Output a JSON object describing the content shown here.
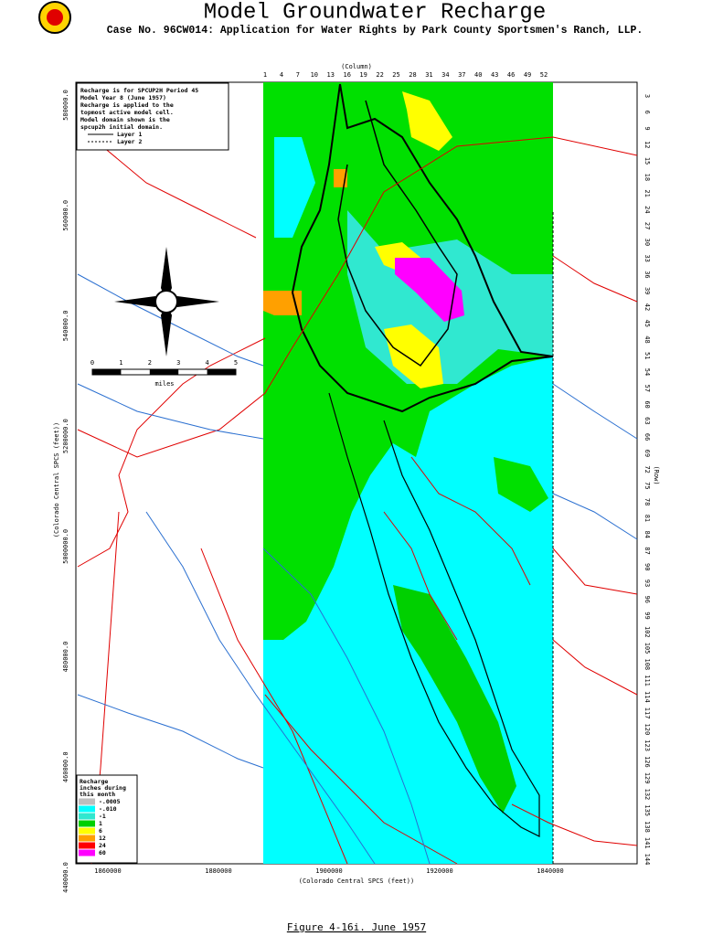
{
  "header": {
    "title": "Model Groundwater Recharge",
    "subtitle": "Case No. 96CW014: Application for Water Rights by Park County Sportsmen's Ranch, LLP."
  },
  "notes": [
    "Recharge is for SPCUP2H Period 45",
    "Model Year  8 (June 1957)",
    "Recharge is applied to the",
    "topmost active model cell.",
    "Model domain shown is the",
    "spcup2h initial domain."
  ],
  "layers": [
    "Layer 1",
    "Layer 2"
  ],
  "grid": {
    "column_title": "(Column)",
    "columns": [
      1,
      4,
      7,
      10,
      13,
      16,
      19,
      22,
      25,
      28,
      31,
      34,
      37,
      40,
      43,
      46,
      49,
      52
    ],
    "row_title": "(Row)",
    "rows": [
      3,
      6,
      9,
      12,
      15,
      18,
      21,
      24,
      27,
      30,
      33,
      36,
      39,
      42,
      45,
      48,
      51,
      54,
      57,
      60,
      63,
      66,
      69,
      72,
      75,
      78,
      81,
      84,
      87,
      90,
      93,
      96,
      99,
      102,
      105,
      108,
      111,
      114,
      117,
      120,
      123,
      126,
      129,
      132,
      135,
      138,
      141,
      144
    ]
  },
  "axes": {
    "x_title": "(Colorado Central SPCS (feet))",
    "x_labels": [
      "1860000",
      "1880000",
      "1900000",
      "1920000",
      "1840000"
    ],
    "y_title": "(Colorado Central SPCS (feet))",
    "y_labels": [
      "580000.0",
      "560000.0",
      "540000.0",
      "5200000.0",
      "5000000.0",
      "480000.0",
      "460000.0",
      "440000.0"
    ]
  },
  "scale_bar": {
    "labels": [
      "0",
      "1",
      "2",
      "3",
      "4",
      "5"
    ],
    "unit": "miles"
  },
  "legend": {
    "title": [
      "Recharge",
      "inches during",
      "this month"
    ],
    "items": [
      {
        "label": "-.0005",
        "color": "#bdbdbd"
      },
      {
        "label": "-.010",
        "color": "#00ffff"
      },
      {
        "label": "-1",
        "color": "#30e8d0"
      },
      {
        "label": "1",
        "color": "#00d000"
      },
      {
        "label": "6",
        "color": "#ffff00"
      },
      {
        "label": "12",
        "color": "#ffa000"
      },
      {
        "label": "24",
        "color": "#ff0000"
      },
      {
        "label": "60",
        "color": "#ff00ff"
      }
    ]
  },
  "caption": "Figure 4-16i.   June 1957"
}
